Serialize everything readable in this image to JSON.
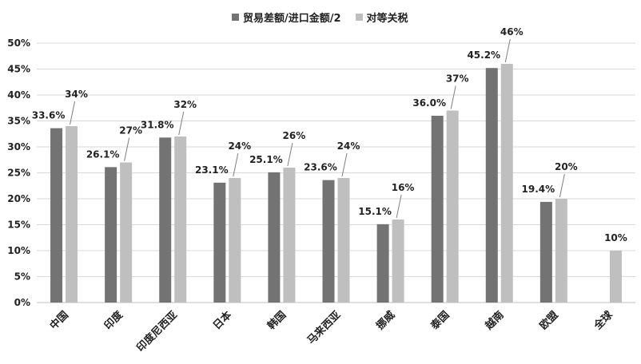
{
  "chart_data": {
    "type": "bar",
    "categories": [
      "中国",
      "印度",
      "印度尼西亚",
      "日本",
      "韩国",
      "马来西亚",
      "挪威",
      "泰国",
      "越南",
      "欧盟",
      "全球"
    ],
    "series": [
      {
        "name": "贸易差额/进口金额/2",
        "values": [
          33.6,
          26.1,
          31.8,
          23.1,
          25.1,
          23.6,
          15.1,
          36.0,
          45.2,
          19.4,
          null
        ],
        "labels": [
          "33.6%",
          "26.1%",
          "31.8%",
          "23.1%",
          "25.1%",
          "23.6%",
          "15.1%",
          "36.0%",
          "45.2%",
          "19.4%",
          ""
        ],
        "color": "#737373"
      },
      {
        "name": "对等关税",
        "values": [
          34,
          27,
          32,
          24,
          26,
          24,
          16,
          37,
          46,
          20,
          10
        ],
        "labels": [
          "34%",
          "27%",
          "32%",
          "24%",
          "26%",
          "24%",
          "16%",
          "37%",
          "46%",
          "20%",
          "10%"
        ],
        "color": "#bfbfbf"
      }
    ],
    "ylim": [
      0,
      50
    ],
    "yticks": [
      "0%",
      "5%",
      "10%",
      "15%",
      "20%",
      "25%",
      "30%",
      "35%",
      "40%",
      "45%",
      "50%"
    ],
    "grid": true,
    "legend_position": "top-center"
  }
}
